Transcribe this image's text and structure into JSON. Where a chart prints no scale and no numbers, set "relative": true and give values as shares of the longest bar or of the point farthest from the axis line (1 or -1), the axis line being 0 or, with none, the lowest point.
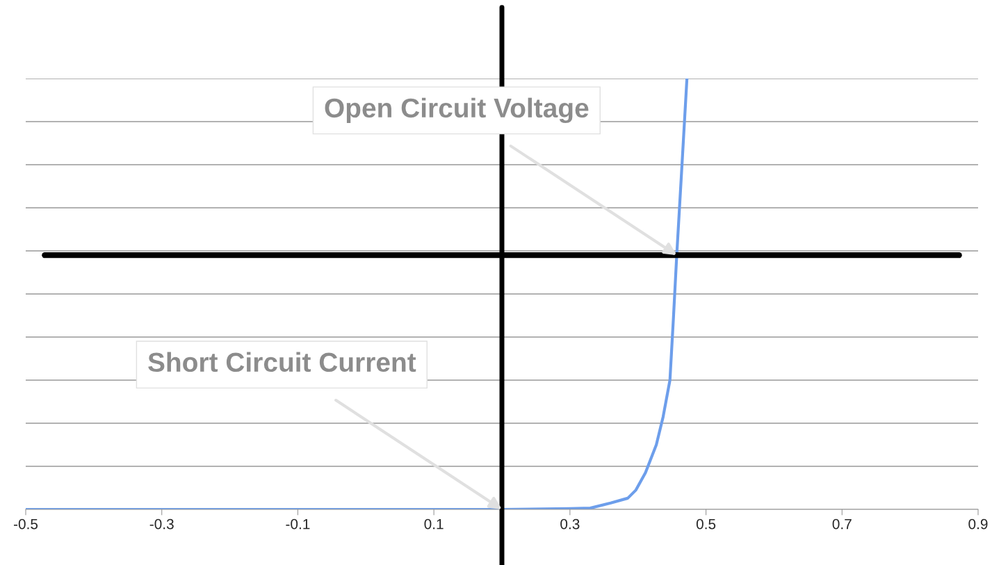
{
  "chart_data": {
    "type": "line",
    "relative": true,
    "series": [
      {
        "color": "#6d9eeb",
        "x": [
          -0.5,
          0.2,
          0.3,
          0.33,
          0.36,
          0.385,
          0.397,
          0.411,
          0.427,
          0.437,
          0.447,
          0.452,
          0.457,
          0.464,
          0.472
        ],
        "values": [
          0,
          0,
          0.002,
          0.003,
          0.015,
          0.026,
          0.045,
          0.085,
          0.15,
          0.215,
          0.3,
          0.44,
          0.59,
          0.78,
          1.0
        ]
      }
    ],
    "xlim": [
      -0.5,
      0.9
    ],
    "xticks": [
      -0.5,
      -0.3,
      -0.1,
      0.1,
      0.3,
      0.5,
      0.7,
      0.9
    ],
    "grid": "y",
    "tick_labels": "x",
    "ref_lines": [
      {
        "axis": "x",
        "value": 0.2,
        "color": "#000000"
      },
      {
        "axis": "y",
        "value": 0.59,
        "color": "#000000"
      }
    ],
    "annotations": [
      {
        "text": "Open Circuit Voltage",
        "x": 0.457,
        "y": 0.59
      },
      {
        "text": "Short Circuit Current",
        "x": 0.2,
        "y": 0
      }
    ]
  }
}
